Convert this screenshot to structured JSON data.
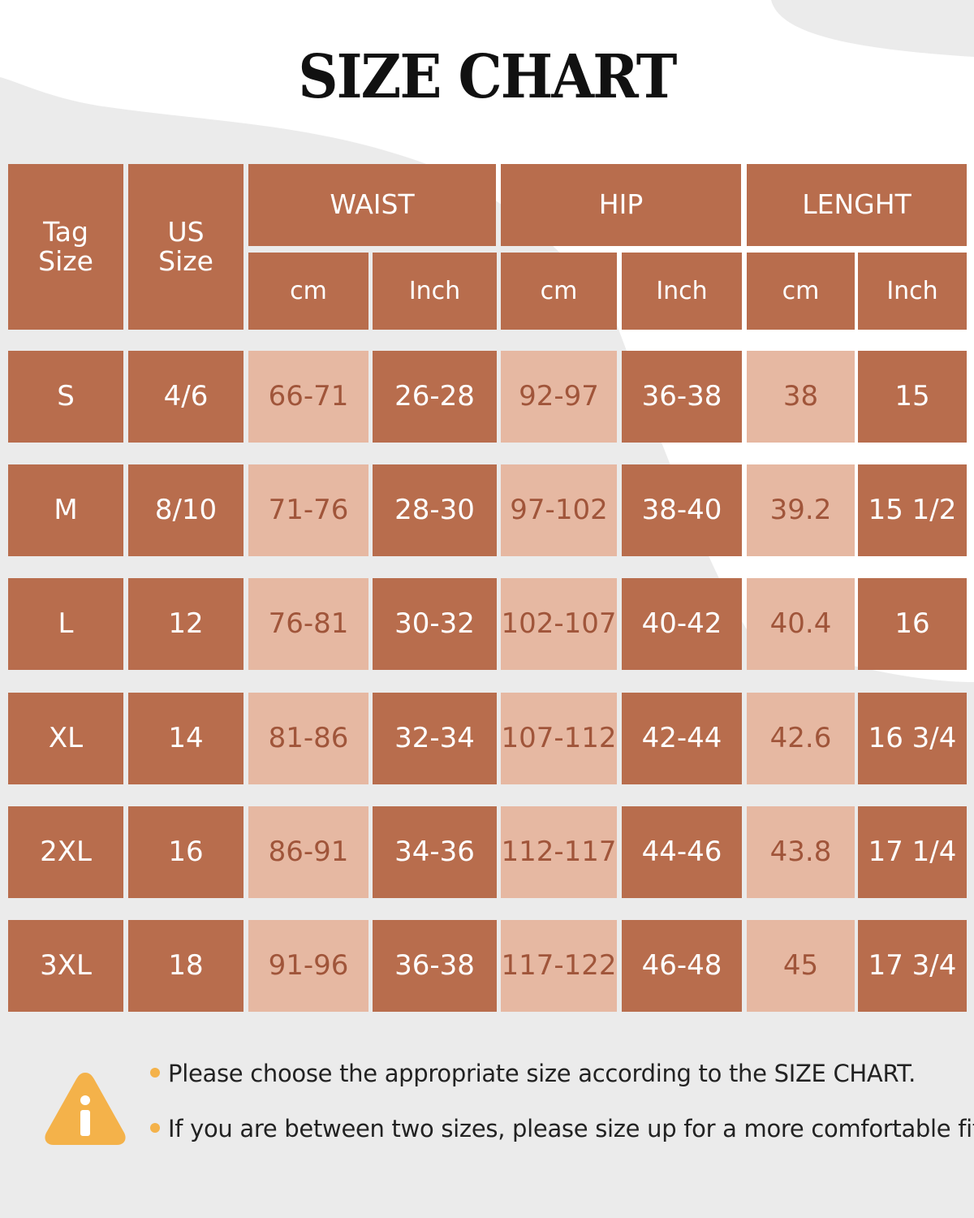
{
  "title": "SIZE CHART",
  "headers": {
    "tag_size": "Tag\nSize",
    "us_size": "US\nSize",
    "groups": [
      "WAIST",
      "HIP",
      "LENGHT"
    ],
    "units": [
      "cm",
      "Inch",
      "cm",
      "Inch",
      "cm",
      "Inch"
    ]
  },
  "rows": [
    [
      "S",
      "4/6",
      "66-71",
      "26-28",
      "92-97",
      "36-38",
      "38",
      "15"
    ],
    [
      "M",
      "8/10",
      "71-76",
      "28-30",
      "97-102",
      "38-40",
      "39.2",
      "15 1/2"
    ],
    [
      "L",
      "12",
      "76-81",
      "30-32",
      "102-107",
      "40-42",
      "40.4",
      "16"
    ],
    [
      "XL",
      "14",
      "81-86",
      "32-34",
      "107-112",
      "42-44",
      "42.6",
      "16 3/4"
    ],
    [
      "2XL",
      "16",
      "86-91",
      "34-36",
      "112-117",
      "44-46",
      "43.8",
      "17 1/4"
    ],
    [
      "3XL",
      "18",
      "91-96",
      "36-38",
      "117-122",
      "46-48",
      "45",
      "17 3/4"
    ]
  ],
  "notes": [
    "Please choose the appropriate size according to the SIZE CHART.",
    "If you are between two sizes, please size up for a more comfortable fit!"
  ],
  "colors": {
    "dark_cell": "#b86d4d",
    "light_cell": "#e6b8a2",
    "light_text": "#a0553a",
    "warning_icon": "#f4b24a",
    "background": "#ebebeb"
  },
  "icons": {
    "warning": "warning-info-icon"
  }
}
